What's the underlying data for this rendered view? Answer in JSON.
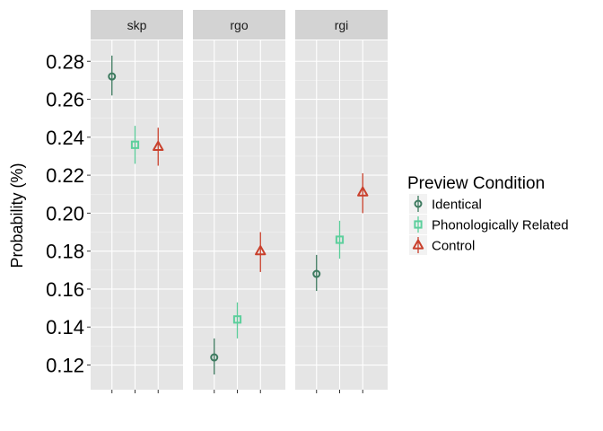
{
  "chart_data": {
    "type": "scatter",
    "ylabel": "Probability (%)",
    "xlabel": "",
    "ylim": [
      0.107,
      0.291
    ],
    "yticks": [
      "0.12",
      "0.14",
      "0.16",
      "0.18",
      "0.20",
      "0.22",
      "0.24",
      "0.26",
      "0.28"
    ],
    "panels": [
      "skp",
      "rgo",
      "rgi"
    ],
    "legend": {
      "title": "Preview Condition",
      "position": "right"
    },
    "grid": true,
    "series": [
      {
        "name": "Identical",
        "color": "#3d7a5f",
        "marker": "circle",
        "points": [
          {
            "panel": "skp",
            "y": 0.272,
            "ymin": 0.262,
            "ymax": 0.283
          },
          {
            "panel": "rgo",
            "y": 0.124,
            "ymin": 0.115,
            "ymax": 0.134
          },
          {
            "panel": "rgi",
            "y": 0.168,
            "ymin": 0.159,
            "ymax": 0.178
          }
        ]
      },
      {
        "name": "Phonologically Related",
        "color": "#5ccf9c",
        "marker": "square",
        "points": [
          {
            "panel": "skp",
            "y": 0.236,
            "ymin": 0.226,
            "ymax": 0.246
          },
          {
            "panel": "rgo",
            "y": 0.144,
            "ymin": 0.134,
            "ymax": 0.153
          },
          {
            "panel": "rgi",
            "y": 0.186,
            "ymin": 0.176,
            "ymax": 0.196
          }
        ]
      },
      {
        "name": "Control",
        "color": "#c9402c",
        "marker": "triangle",
        "points": [
          {
            "panel": "skp",
            "y": 0.235,
            "ymin": 0.225,
            "ymax": 0.245
          },
          {
            "panel": "rgo",
            "y": 0.18,
            "ymin": 0.169,
            "ymax": 0.19
          },
          {
            "panel": "rgi",
            "y": 0.211,
            "ymin": 0.2,
            "ymax": 0.221
          }
        ]
      }
    ]
  }
}
